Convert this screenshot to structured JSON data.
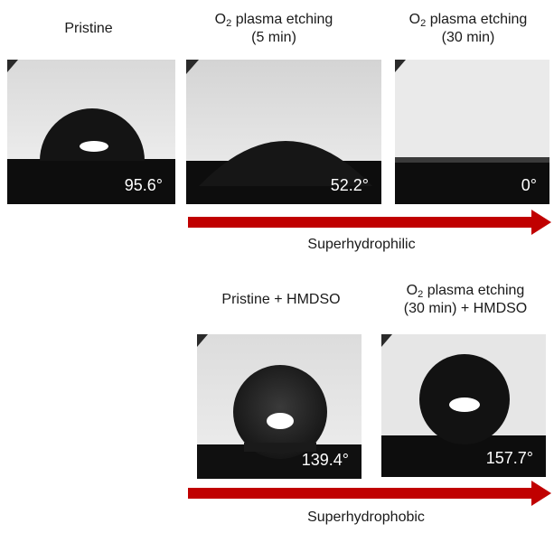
{
  "top_row": {
    "labels": {
      "pristine": "Pristine",
      "plasma5_line1_pre": "O",
      "plasma5_line1_sub": "2",
      "plasma5_line1_post": " plasma etching",
      "plasma5_line2": "(5 min)",
      "plasma30_line1_pre": "O",
      "plasma30_line1_sub": "2",
      "plasma30_line1_post": " plasma etching",
      "plasma30_line2": "(30 min)"
    },
    "angles": {
      "pristine": "95.6°",
      "plasma5": "52.2°",
      "plasma30": "0°"
    },
    "caption": "Superhydrophilic"
  },
  "bottom_row": {
    "labels": {
      "hmdso": "Pristine + HMDSO",
      "plasma_hmdso_line1_pre": "O",
      "plasma_hmdso_line1_sub": "2",
      "plasma_hmdso_line1_post": " plasma etching",
      "plasma_hmdso_line2": "(30 min) + HMDSO"
    },
    "angles": {
      "hmdso": "139.4°",
      "plasma_hmdso": "157.7°"
    },
    "caption": "Superhydrophobic"
  },
  "colors": {
    "arrow": "#c00000",
    "substrate": "#0d0d0d",
    "droplet": "#141414",
    "background_light": "#e8e8e8"
  }
}
